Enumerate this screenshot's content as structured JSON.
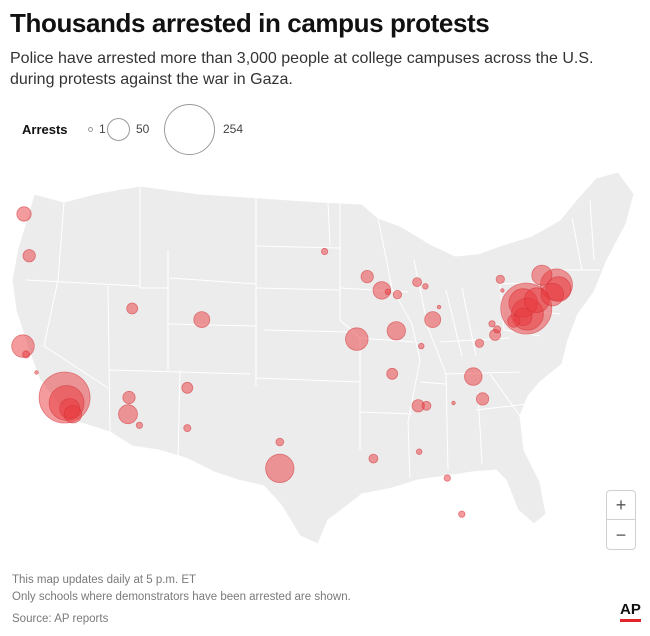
{
  "header": {
    "title": "Thousands arrested in campus protests",
    "subtitle": "Police have arrested more than 3,000 people at college campuses across the U.S. during protests against the war in Gaza."
  },
  "legend": {
    "title": "Arrests",
    "items": [
      {
        "label": "1",
        "value": 1
      },
      {
        "label": "50",
        "value": 50
      },
      {
        "label": "254",
        "value": 254
      }
    ]
  },
  "map": {
    "region": "Contiguous United States",
    "colors": {
      "land": "#ececec",
      "borders": "#ffffff",
      "bubble_fill": "#e8383b",
      "bubble_stroke": "#d23034"
    },
    "bubbles": [
      {
        "lon": -122.3,
        "lat": 47.6,
        "arrests": 20
      },
      {
        "lon": -121.8,
        "lat": 44.6,
        "arrests": 15
      },
      {
        "lon": -122.4,
        "lat": 38.1,
        "arrests": 50
      },
      {
        "lon": -122.1,
        "lat": 37.5,
        "arrests": 5
      },
      {
        "lon": -121.1,
        "lat": 36.2,
        "arrests": 1
      },
      {
        "lon": -118.4,
        "lat": 34.4,
        "arrests": 254
      },
      {
        "lon": -118.2,
        "lat": 34.0,
        "arrests": 120
      },
      {
        "lon": -117.9,
        "lat": 33.6,
        "arrests": 40
      },
      {
        "lon": -117.6,
        "lat": 33.2,
        "arrests": 30
      },
      {
        "lon": -111.9,
        "lat": 40.8,
        "arrests": 12
      },
      {
        "lon": -105.2,
        "lat": 40.0,
        "arrests": 25
      },
      {
        "lon": -112.2,
        "lat": 34.4,
        "arrests": 15
      },
      {
        "lon": -112.3,
        "lat": 33.2,
        "arrests": 35
      },
      {
        "lon": -111.2,
        "lat": 32.4,
        "arrests": 4
      },
      {
        "lon": -106.6,
        "lat": 35.1,
        "arrests": 12
      },
      {
        "lon": -106.6,
        "lat": 32.2,
        "arrests": 5
      },
      {
        "lon": -97.7,
        "lat": 31.2,
        "arrests": 6
      },
      {
        "lon": -97.7,
        "lat": 29.3,
        "arrests": 79
      },
      {
        "lon": -93.4,
        "lat": 44.9,
        "arrests": 4
      },
      {
        "lon": -89.3,
        "lat": 43.1,
        "arrests": 15
      },
      {
        "lon": -87.9,
        "lat": 42.1,
        "arrests": 30
      },
      {
        "lon": -87.3,
        "lat": 42.0,
        "arrests": 3
      },
      {
        "lon": -86.4,
        "lat": 41.8,
        "arrests": 7
      },
      {
        "lon": -83.7,
        "lat": 42.4,
        "arrests": 3
      },
      {
        "lon": -84.5,
        "lat": 42.7,
        "arrests": 8
      },
      {
        "lon": -83.0,
        "lat": 40.0,
        "arrests": 25
      },
      {
        "lon": -82.4,
        "lat": 40.9,
        "arrests": 1
      },
      {
        "lon": -86.5,
        "lat": 39.2,
        "arrests": 33
      },
      {
        "lon": -90.3,
        "lat": 38.6,
        "arrests": 50
      },
      {
        "lon": -84.1,
        "lat": 38.1,
        "arrests": 3
      },
      {
        "lon": -86.9,
        "lat": 36.1,
        "arrests": 12
      },
      {
        "lon": -84.4,
        "lat": 33.8,
        "arrests": 15
      },
      {
        "lon": -83.6,
        "lat": 33.8,
        "arrests": 8
      },
      {
        "lon": -81.0,
        "lat": 34.0,
        "arrests": 1
      },
      {
        "lon": -79.1,
        "lat": 35.9,
        "arrests": 30
      },
      {
        "lon": -78.5,
        "lat": 38.3,
        "arrests": 7
      },
      {
        "lon": -77.0,
        "lat": 38.9,
        "arrests": 12
      },
      {
        "lon": -76.8,
        "lat": 39.3,
        "arrests": 5
      },
      {
        "lon": -77.3,
        "lat": 39.7,
        "arrests": 4
      },
      {
        "lon": -75.2,
        "lat": 39.9,
        "arrests": 15
      },
      {
        "lon": -78.2,
        "lat": 34.3,
        "arrests": 15
      },
      {
        "lon": -84.3,
        "lat": 30.5,
        "arrests": 3
      },
      {
        "lon": -81.6,
        "lat": 28.6,
        "arrests": 4
      },
      {
        "lon": -80.2,
        "lat": 26.0,
        "arrests": 4
      },
      {
        "lon": -88.7,
        "lat": 30.0,
        "arrests": 8
      },
      {
        "lon": -76.5,
        "lat": 42.9,
        "arrests": 7
      },
      {
        "lon": -76.3,
        "lat": 42.1,
        "arrests": 1
      },
      {
        "lon": -74.0,
        "lat": 40.8,
        "arrests": 254
      },
      {
        "lon": -73.9,
        "lat": 40.4,
        "arrests": 100
      },
      {
        "lon": -74.3,
        "lat": 41.2,
        "arrests": 80
      },
      {
        "lon": -73.0,
        "lat": 41.4,
        "arrests": 60
      },
      {
        "lon": -72.5,
        "lat": 43.2,
        "arrests": 40
      },
      {
        "lon": -71.1,
        "lat": 42.5,
        "arrests": 100
      },
      {
        "lon": -70.9,
        "lat": 42.2,
        "arrests": 60
      },
      {
        "lon": -71.5,
        "lat": 41.8,
        "arrests": 50
      },
      {
        "lon": -74.3,
        "lat": 40.2,
        "arrests": 30
      }
    ]
  },
  "controls": {
    "zoom_in": "+",
    "zoom_out": "−"
  },
  "notes": {
    "line1": "This map updates daily at 5 p.m. ET",
    "line2": "Only schools where demonstrators have been arrested are shown.",
    "source": "Source: AP reports"
  },
  "logo": "AP"
}
